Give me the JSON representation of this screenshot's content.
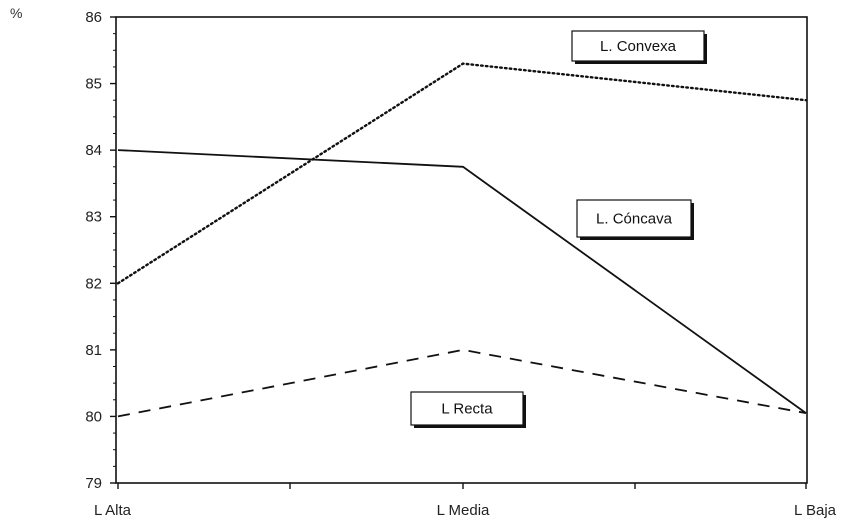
{
  "chart_data": {
    "type": "line",
    "title": "",
    "xlabel": "",
    "ylabel": "%",
    "categories": [
      "L Alta",
      "L Media",
      "L Baja"
    ],
    "ylim": [
      79,
      86
    ],
    "yticks": [
      "79",
      "80",
      "81",
      "82",
      "83",
      "84",
      "85",
      "86"
    ],
    "grid": false,
    "series": [
      {
        "name": "L. Convexa",
        "values": [
          82.0,
          85.3,
          84.75
        ],
        "style": "dotted"
      },
      {
        "name": "L. Cóncava",
        "values": [
          84.0,
          83.75,
          80.05
        ],
        "style": "solid"
      },
      {
        "name": "L Recta",
        "values": [
          80.0,
          81.0,
          80.05
        ],
        "style": "dashed"
      }
    ]
  }
}
